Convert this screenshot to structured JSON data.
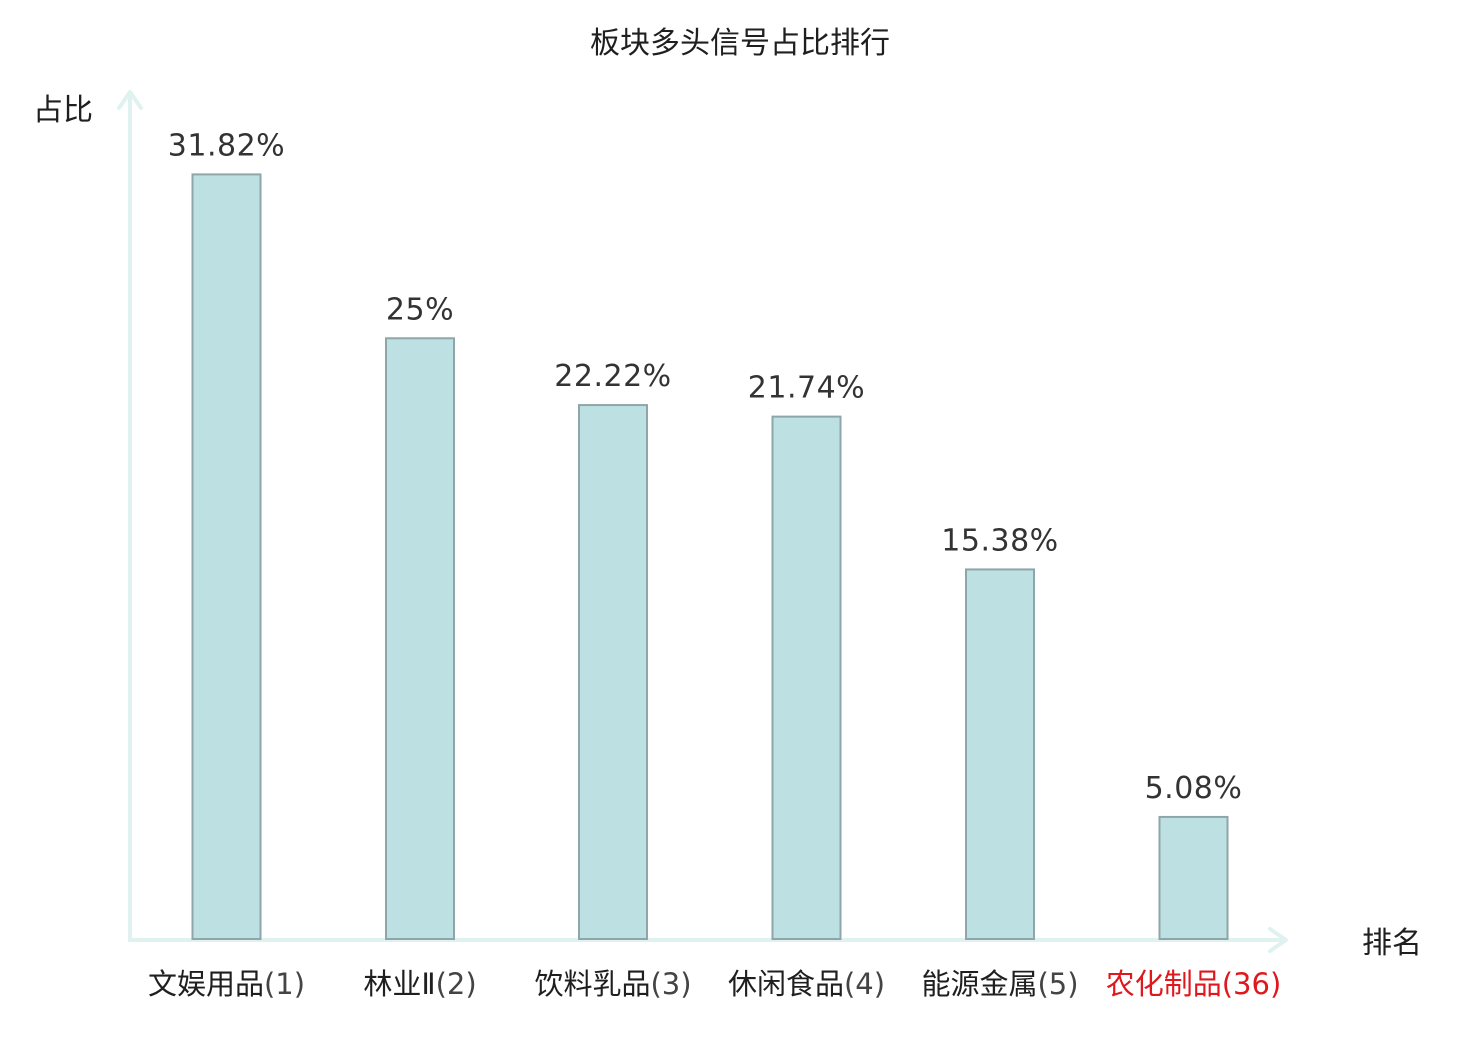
{
  "chart_data": {
    "type": "bar",
    "title": "板块多头信号占比排行",
    "ylabel": "占比",
    "xlabel": "排名",
    "ylim": [
      0,
      34.5
    ],
    "grid": false,
    "categories": [
      {
        "name": "文娱用品",
        "rank": "(1)"
      },
      {
        "name": "林业Ⅱ",
        "rank": "(2)"
      },
      {
        "name": "饮料乳品",
        "rank": "(3)"
      },
      {
        "name": "休闲食品",
        "rank": "(4)"
      },
      {
        "name": "能源金属",
        "rank": "(5)"
      },
      {
        "name": "农化制品",
        "rank": "(36)"
      }
    ],
    "values": [
      31.82,
      25,
      22.22,
      21.74,
      15.38,
      5.08
    ],
    "value_labels": [
      "31.82%",
      "25%",
      "22.22%",
      "21.74%",
      "15.38%",
      "5.08%"
    ],
    "highlight_index": 5,
    "colors": {
      "bar_fill": "#bde0e3",
      "bar_stroke": "#8ea6aa",
      "axis": "#dff2ef",
      "highlight_text": "#e0171d"
    }
  }
}
